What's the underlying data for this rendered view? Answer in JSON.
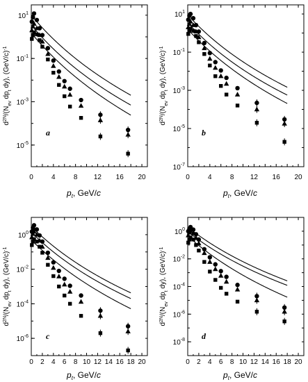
{
  "chart_data": [
    {
      "type": "scatter",
      "panel_label": "a",
      "xlabel": "p_t, GeV/c",
      "ylabel": "d^2N/(N_ev dp_t dy), (GeV/c)^-1",
      "xlim": [
        0,
        21
      ],
      "ylim": [
        1e-06,
        30
      ],
      "y_scale": "log",
      "x_ticks": [
        0,
        2,
        4,
        6,
        8,
        10,
        12,
        14,
        16,
        18,
        20
      ],
      "x_tick_labels": [
        "0",
        "",
        "4",
        "",
        "8",
        "",
        "12",
        "",
        "16",
        "",
        "20"
      ],
      "y_ticks": [
        10,
        0.1,
        0.001,
        1e-05
      ],
      "y_tick_labels": [
        "10^1",
        "10^-1",
        "10^-3",
        "10^-5"
      ],
      "series": [
        {
          "marker": "circle",
          "points": [
            [
              0.1,
              5
            ],
            [
              0.3,
              8
            ],
            [
              0.5,
              12
            ],
            [
              1,
              6
            ],
            [
              1.5,
              2.5
            ],
            [
              2,
              1.2
            ],
            [
              3,
              0.3
            ],
            [
              4,
              0.08
            ],
            [
              5,
              0.025
            ],
            [
              6,
              0.009
            ],
            [
              7,
              0.004
            ],
            [
              9,
              0.0012
            ],
            [
              12.5,
              0.00025
            ],
            [
              17.5,
              5e-05
            ]
          ]
        },
        {
          "marker": "triangle",
          "points": [
            [
              0.1,
              2
            ],
            [
              0.3,
              3
            ],
            [
              0.5,
              4
            ],
            [
              1,
              2.5
            ],
            [
              1.5,
              1.2
            ],
            [
              2,
              0.6
            ],
            [
              3,
              0.16
            ],
            [
              4,
              0.045
            ],
            [
              5,
              0.014
            ],
            [
              6,
              0.005
            ],
            [
              7,
              0.0021
            ],
            [
              9,
              0.00065
            ],
            [
              12.5,
              0.00014
            ],
            [
              17.5,
              3e-05
            ]
          ]
        },
        {
          "marker": "square",
          "points": [
            [
              0.1,
              0.8
            ],
            [
              0.3,
              1.2
            ],
            [
              0.5,
              1.6
            ],
            [
              1,
              1.3
            ],
            [
              1.5,
              0.7
            ],
            [
              2,
              0.35
            ],
            [
              3,
              0.09
            ],
            [
              4,
              0.022
            ],
            [
              5,
              0.006
            ],
            [
              6,
              0.0018
            ],
            [
              7,
              0.0006
            ],
            [
              9,
              0.00018
            ],
            [
              12.5,
              2.5e-05
            ],
            [
              17.5,
              4e-06
            ]
          ]
        }
      ],
      "fits": [
        {
          "A": 10,
          "T": 1.4,
          "n": 11,
          "from": 0.5,
          "to": 18
        },
        {
          "A": 3.5,
          "T": 1.4,
          "n": 11,
          "from": 0.5,
          "to": 18
        },
        {
          "A": 1.5,
          "T": 1.4,
          "n": 12,
          "from": 0.5,
          "to": 18
        }
      ]
    },
    {
      "type": "scatter",
      "panel_label": "b",
      "xlabel": "p_t, GeV/c",
      "ylabel": "d^2N/(N_ev dp_t dy), (GeV/c)^-1",
      "xlim": [
        0,
        21
      ],
      "ylim": [
        1e-07,
        30
      ],
      "y_scale": "log",
      "x_ticks": [
        0,
        2,
        4,
        6,
        8,
        10,
        12,
        14,
        16,
        18,
        20
      ],
      "x_tick_labels": [
        "0",
        "",
        "4",
        "",
        "8",
        "",
        "12",
        "",
        "16",
        "",
        "20"
      ],
      "y_ticks": [
        10,
        0.1,
        0.001,
        1e-05,
        1e-07
      ],
      "y_tick_labels": [
        "10^1",
        "10^-1",
        "10^-3",
        "10^-5",
        "10^-7"
      ],
      "series": [
        {
          "marker": "circle",
          "points": [
            [
              0.1,
              5
            ],
            [
              0.3,
              8
            ],
            [
              0.5,
              10
            ],
            [
              1,
              6
            ],
            [
              1.5,
              2.6
            ],
            [
              2,
              1.2
            ],
            [
              3,
              0.3
            ],
            [
              4,
              0.09
            ],
            [
              5,
              0.03
            ],
            [
              6,
              0.011
            ],
            [
              7,
              0.0045
            ],
            [
              9,
              0.0013
            ],
            [
              12.5,
              0.00022
            ],
            [
              17.5,
              3e-05
            ]
          ]
        },
        {
          "marker": "triangle",
          "points": [
            [
              0.1,
              2
            ],
            [
              0.3,
              3
            ],
            [
              0.5,
              4
            ],
            [
              1,
              2.6
            ],
            [
              1.5,
              1.2
            ],
            [
              2,
              0.6
            ],
            [
              3,
              0.16
            ],
            [
              4,
              0.045
            ],
            [
              5,
              0.015
            ],
            [
              6,
              0.0055
            ],
            [
              7,
              0.0022
            ],
            [
              9,
              0.0006
            ],
            [
              12.5,
              0.0001
            ],
            [
              17.5,
              1.8e-05
            ]
          ]
        },
        {
          "marker": "square",
          "points": [
            [
              0.1,
              0.9
            ],
            [
              0.3,
              1.3
            ],
            [
              0.5,
              1.7
            ],
            [
              1,
              1.3
            ],
            [
              1.5,
              0.7
            ],
            [
              2,
              0.33
            ],
            [
              3,
              0.08
            ],
            [
              4,
              0.02
            ],
            [
              5,
              0.0055
            ],
            [
              6,
              0.0017
            ],
            [
              7,
              0.0006
            ],
            [
              9,
              0.00016
            ],
            [
              12.5,
              2e-05
            ],
            [
              17.5,
              2e-06
            ]
          ]
        }
      ],
      "fits": [
        {
          "A": 9,
          "T": 1.35,
          "n": 11,
          "from": 0.5,
          "to": 18
        },
        {
          "A": 3.5,
          "T": 1.35,
          "n": 11,
          "from": 0.5,
          "to": 18
        },
        {
          "A": 1.6,
          "T": 1.35,
          "n": 12,
          "from": 0.5,
          "to": 18
        }
      ]
    },
    {
      "type": "scatter",
      "panel_label": "c",
      "xlabel": "p_t, GeV/c",
      "ylabel": "d^2N/(N_ev dp_t dy), (GeV/c)^-1",
      "xlim": [
        0,
        21
      ],
      "ylim": [
        1e-07,
        10
      ],
      "y_scale": "log",
      "x_ticks": [
        0,
        2,
        4,
        6,
        8,
        10,
        12,
        14,
        16,
        18,
        20
      ],
      "x_tick_labels": [
        "0",
        "2",
        "4",
        "6",
        "8",
        "10",
        "12",
        "14",
        "16",
        "18",
        "20"
      ],
      "y_ticks": [
        1,
        0.01,
        0.0001,
        1e-06
      ],
      "y_tick_labels": [
        "10^0",
        "10^-2",
        "10^-4",
        "10^-6"
      ],
      "series": [
        {
          "marker": "circle",
          "points": [
            [
              0.1,
              1.5
            ],
            [
              0.3,
              2.5
            ],
            [
              0.5,
              3.5
            ],
            [
              1,
              2
            ],
            [
              1.5,
              0.9
            ],
            [
              2,
              0.4
            ],
            [
              3,
              0.09
            ],
            [
              4,
              0.025
            ],
            [
              5,
              0.008
            ],
            [
              6,
              0.0028
            ],
            [
              7,
              0.0011
            ],
            [
              9,
              0.0003
            ],
            [
              12.5,
              4e-05
            ],
            [
              17.5,
              5e-06
            ]
          ]
        },
        {
          "marker": "triangle",
          "points": [
            [
              0.1,
              0.7
            ],
            [
              0.3,
              1.1
            ],
            [
              0.5,
              1.5
            ],
            [
              1,
              1
            ],
            [
              1.5,
              0.45
            ],
            [
              2,
              0.2
            ],
            [
              3,
              0.045
            ],
            [
              4,
              0.012
            ],
            [
              5,
              0.0038
            ],
            [
              6,
              0.0013
            ],
            [
              7,
              0.0005
            ],
            [
              9,
              0.00013
            ],
            [
              12.5,
              2e-05
            ],
            [
              17.5,
              2.5e-06
            ]
          ]
        },
        {
          "marker": "square",
          "points": [
            [
              0.1,
              0.25
            ],
            [
              0.3,
              0.4
            ],
            [
              0.5,
              0.55
            ],
            [
              1,
              0.4
            ],
            [
              1.5,
              0.2
            ],
            [
              2,
              0.09
            ],
            [
              3,
              0.018
            ],
            [
              4,
              0.004
            ],
            [
              5,
              0.001
            ],
            [
              6,
              0.0003
            ],
            [
              7,
              0.0001
            ],
            [
              9,
              2e-05
            ],
            [
              12.5,
              2e-06
            ],
            [
              17.5,
              2e-07
            ]
          ]
        }
      ],
      "fits": [
        {
          "A": 3.0,
          "T": 1.35,
          "n": 11.5,
          "from": 0.5,
          "to": 18
        },
        {
          "A": 1.4,
          "T": 1.35,
          "n": 11.5,
          "from": 0.5,
          "to": 18
        },
        {
          "A": 0.5,
          "T": 1.35,
          "n": 13,
          "from": 0.5,
          "to": 18
        }
      ]
    },
    {
      "type": "scatter",
      "panel_label": "d",
      "xlabel": "p_t, GeV/c",
      "ylabel": "d^2N/(N_ev dp_t dy), (GeV/c)^-1",
      "xlim": [
        0,
        21
      ],
      "ylim": [
        1e-09,
        10
      ],
      "y_scale": "log",
      "x_ticks": [
        0,
        2,
        4,
        6,
        8,
        10,
        12,
        14,
        16,
        18,
        20
      ],
      "x_tick_labels": [
        "0",
        "2",
        "4",
        "6",
        "8",
        "10",
        "12",
        "14",
        "16",
        "18",
        "20"
      ],
      "y_ticks": [
        1,
        0.01,
        0.0001,
        1e-06,
        1e-08
      ],
      "y_tick_labels": [
        "10^0",
        "10^-2",
        "10^-4",
        "10^-6",
        "10^-8"
      ],
      "series": [
        {
          "marker": "circle",
          "points": [
            [
              0.1,
              1
            ],
            [
              0.3,
              1.5
            ],
            [
              0.5,
              2
            ],
            [
              1,
              1.3
            ],
            [
              1.5,
              0.6
            ],
            [
              2,
              0.25
            ],
            [
              3,
              0.05
            ],
            [
              4,
              0.013
            ],
            [
              5,
              0.004
            ],
            [
              6,
              0.0013
            ],
            [
              7,
              0.0005
            ],
            [
              9,
              0.00013
            ],
            [
              12.5,
              2e-05
            ],
            [
              17.5,
              3e-06
            ]
          ]
        },
        {
          "marker": "triangle",
          "points": [
            [
              0.1,
              0.5
            ],
            [
              0.3,
              0.8
            ],
            [
              0.5,
              1
            ],
            [
              1,
              0.7
            ],
            [
              1.5,
              0.32
            ],
            [
              2,
              0.13
            ],
            [
              3,
              0.026
            ],
            [
              4,
              0.006
            ],
            [
              5,
              0.0018
            ],
            [
              6,
              0.0006
            ],
            [
              7,
              0.00022
            ],
            [
              9,
              6e-05
            ],
            [
              12.5,
              1e-05
            ],
            [
              17.5,
              1.5e-06
            ]
          ]
        },
        {
          "marker": "square",
          "points": [
            [
              0.1,
              0.15
            ],
            [
              0.3,
              0.25
            ],
            [
              0.5,
              0.35
            ],
            [
              1,
              0.25
            ],
            [
              1.5,
              0.1
            ],
            [
              2,
              0.04
            ],
            [
              3,
              0.006
            ],
            [
              4,
              0.0012
            ],
            [
              5,
              0.0003
            ],
            [
              6,
              8e-05
            ],
            [
              7,
              3e-05
            ],
            [
              9,
              8e-06
            ],
            [
              12.5,
              1.5e-06
            ],
            [
              17.5,
              3e-07
            ]
          ]
        }
      ],
      "fits": [
        {
          "A": 2.0,
          "T": 1.35,
          "n": 12,
          "from": 0.5,
          "to": 18
        },
        {
          "A": 0.95,
          "T": 1.35,
          "n": 12,
          "from": 0.5,
          "to": 18
        },
        {
          "A": 0.45,
          "T": 1.2,
          "n": 14,
          "from": 0.5,
          "to": 18
        }
      ]
    }
  ]
}
